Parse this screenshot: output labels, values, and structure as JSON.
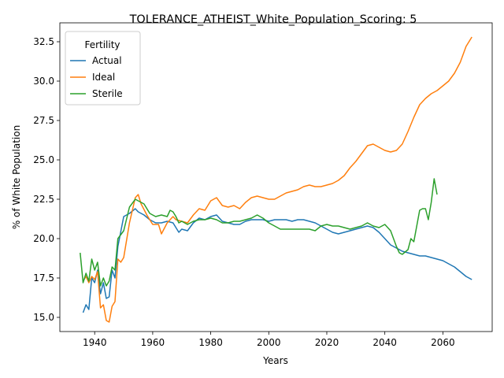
{
  "chart_data": {
    "type": "line",
    "title": "TOLERANCE_ATHEIST_White_Population_Scoring: 5",
    "xlabel": "Years",
    "ylabel": "% of White Population",
    "xlim": [
      1928,
      2077
    ],
    "ylim": [
      14.1,
      33.7
    ],
    "xticks": [
      1940,
      1960,
      1980,
      2000,
      2020,
      2040,
      2060
    ],
    "yticks": [
      15.0,
      17.5,
      20.0,
      22.5,
      25.0,
      27.5,
      30.0,
      32.5
    ],
    "ytick_labels": [
      "15.0",
      "17.5",
      "20.0",
      "22.5",
      "25.0",
      "27.5",
      "30.0",
      "32.5"
    ],
    "grid": false,
    "legend": {
      "title": "Fertility",
      "placement": "top-left"
    },
    "series": [
      {
        "name": "Actual",
        "color": "#1f77b4",
        "x": [
          1936,
          1937,
          1938,
          1939,
          1940,
          1941,
          1942,
          1943,
          1944,
          1945,
          1946,
          1947,
          1948,
          1950,
          1952,
          1954,
          1955,
          1957,
          1959,
          1961,
          1963,
          1965,
          1967,
          1969,
          1970,
          1972,
          1974,
          1976,
          1978,
          1980,
          1982,
          1984,
          1986,
          1988,
          1990,
          1992,
          1994,
          1996,
          1998,
          2000,
          2002,
          2004,
          2006,
          2008,
          2010,
          2012,
          2014,
          2016,
          2018,
          2020,
          2022,
          2024,
          2026,
          2028,
          2030,
          2032,
          2034,
          2036,
          2038,
          2040,
          2042,
          2044,
          2046,
          2048,
          2050,
          2052,
          2054,
          2056,
          2058,
          2060,
          2062,
          2064,
          2066,
          2068,
          2070
        ],
        "y": [
          15.3,
          15.8,
          15.5,
          17.5,
          17.2,
          18.0,
          16.5,
          17.2,
          16.2,
          16.3,
          18.0,
          17.5,
          19.5,
          21.4,
          21.6,
          21.9,
          21.7,
          21.5,
          21.2,
          21.0,
          21.0,
          21.1,
          21.0,
          20.4,
          20.6,
          20.5,
          21.0,
          21.3,
          21.2,
          21.4,
          21.5,
          21.1,
          21.0,
          20.9,
          20.9,
          21.1,
          21.2,
          21.2,
          21.2,
          21.1,
          21.2,
          21.2,
          21.2,
          21.1,
          21.2,
          21.2,
          21.1,
          21.0,
          20.8,
          20.6,
          20.4,
          20.3,
          20.4,
          20.5,
          20.6,
          20.7,
          20.8,
          20.7,
          20.4,
          20.0,
          19.6,
          19.4,
          19.2,
          19.1,
          19.0,
          18.9,
          18.9,
          18.8,
          18.7,
          18.6,
          18.4,
          18.2,
          17.9,
          17.6,
          17.4
        ]
      },
      {
        "name": "Ideal",
        "color": "#ff7f0e",
        "x": [
          1936,
          1937,
          1938,
          1939,
          1940,
          1941,
          1942,
          1943,
          1944,
          1945,
          1946,
          1947,
          1948,
          1949,
          1950,
          1952,
          1954,
          1955,
          1956,
          1958,
          1960,
          1962,
          1963,
          1965,
          1967,
          1968,
          1970,
          1972,
          1974,
          1976,
          1978,
          1980,
          1982,
          1984,
          1986,
          1988,
          1990,
          1992,
          1994,
          1996,
          1998,
          2000,
          2002,
          2004,
          2006,
          2008,
          2010,
          2012,
          2014,
          2016,
          2018,
          2020,
          2022,
          2024,
          2026,
          2028,
          2030,
          2032,
          2034,
          2036,
          2038,
          2040,
          2042,
          2044,
          2046,
          2048,
          2050,
          2052,
          2054,
          2056,
          2058,
          2060,
          2062,
          2064,
          2066,
          2068,
          2070
        ],
        "y": [
          17.3,
          17.6,
          17.2,
          17.6,
          17.4,
          17.9,
          15.6,
          15.8,
          14.8,
          14.7,
          15.7,
          16.0,
          18.7,
          18.5,
          18.8,
          21.0,
          22.6,
          22.8,
          22.2,
          21.5,
          20.9,
          20.9,
          20.3,
          21.0,
          21.4,
          21.2,
          21.1,
          21.0,
          21.5,
          21.9,
          21.8,
          22.4,
          22.6,
          22.1,
          22.0,
          22.1,
          21.9,
          22.3,
          22.6,
          22.7,
          22.6,
          22.5,
          22.5,
          22.7,
          22.9,
          23.0,
          23.1,
          23.3,
          23.4,
          23.3,
          23.3,
          23.4,
          23.5,
          23.7,
          24.0,
          24.5,
          24.9,
          25.4,
          25.9,
          26.0,
          25.8,
          25.6,
          25.5,
          25.6,
          26.0,
          26.8,
          27.7,
          28.5,
          28.9,
          29.2,
          29.4,
          29.7,
          30.0,
          30.5,
          31.2,
          32.2,
          32.8
        ]
      },
      {
        "name": "Sterile",
        "color": "#2ca02c",
        "x": [
          1935,
          1936,
          1937,
          1938,
          1939,
          1940,
          1941,
          1942,
          1943,
          1944,
          1945,
          1946,
          1947,
          1948,
          1950,
          1952,
          1954,
          1955,
          1957,
          1959,
          1961,
          1963,
          1965,
          1966,
          1967,
          1968,
          1969,
          1970,
          1972,
          1974,
          1976,
          1978,
          1980,
          1982,
          1984,
          1986,
          1988,
          1990,
          1992,
          1994,
          1996,
          1998,
          2000,
          2002,
          2004,
          2006,
          2008,
          2010,
          2012,
          2014,
          2016,
          2018,
          2020,
          2022,
          2024,
          2026,
          2028,
          2030,
          2032,
          2034,
          2036,
          2038,
          2040,
          2042,
          2044,
          2045,
          2046,
          2048,
          2049,
          2050,
          2051,
          2052,
          2053,
          2054,
          2055,
          2056,
          2057,
          2058
        ],
        "y": [
          19.1,
          17.2,
          17.8,
          17.3,
          18.7,
          18.0,
          18.5,
          17.0,
          17.5,
          17.0,
          17.3,
          18.2,
          18.0,
          20.0,
          20.5,
          22.0,
          22.5,
          22.4,
          22.2,
          21.6,
          21.4,
          21.5,
          21.4,
          21.8,
          21.7,
          21.4,
          21.0,
          21.1,
          20.9,
          21.1,
          21.2,
          21.2,
          21.3,
          21.2,
          21.0,
          21.0,
          21.1,
          21.1,
          21.2,
          21.3,
          21.5,
          21.3,
          21.0,
          20.8,
          20.6,
          20.6,
          20.6,
          20.6,
          20.6,
          20.6,
          20.5,
          20.8,
          20.9,
          20.8,
          20.8,
          20.7,
          20.6,
          20.7,
          20.8,
          21.0,
          20.8,
          20.7,
          20.9,
          20.5,
          19.5,
          19.1,
          19.0,
          19.3,
          20.0,
          19.8,
          20.8,
          21.8,
          21.9,
          21.9,
          21.2,
          22.3,
          23.8,
          22.8
        ]
      }
    ]
  }
}
